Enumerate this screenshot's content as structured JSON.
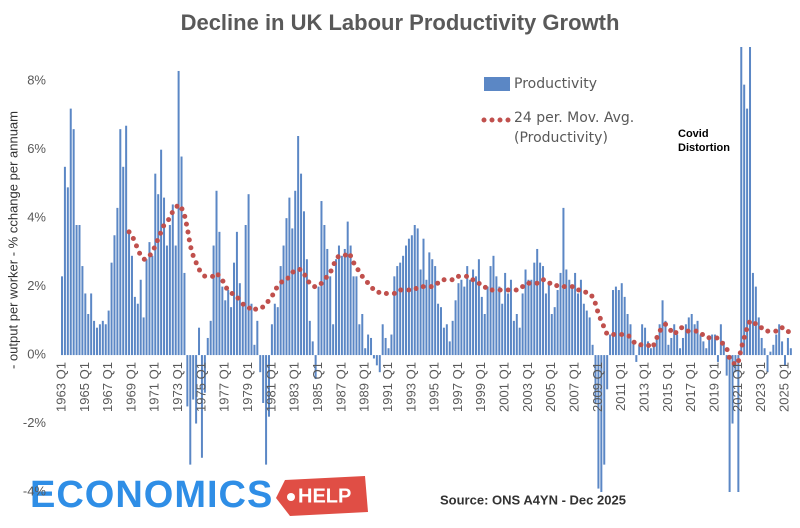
{
  "chart_data": {
    "type": "bar",
    "title": "Decline in UK Labour Productivity Growth",
    "y_label": "- output per worker - % cchange per annuam",
    "annotation": [
      "Covid",
      "Distortion"
    ],
    "source": "Source: ONS A4YN - Dec 2025",
    "ylim": [
      -4,
      9
    ],
    "yticks": [
      {
        "value": -4,
        "label": "-4%"
      },
      {
        "value": -2,
        "label": "-2%"
      },
      {
        "value": 0,
        "label": "0%"
      },
      {
        "value": 2,
        "label": "2%"
      },
      {
        "value": 4,
        "label": "4%"
      },
      {
        "value": 6,
        "label": "6%"
      },
      {
        "value": 8,
        "label": "8%"
      }
    ],
    "grid": false,
    "categories": [
      "1963 Q1",
      null,
      null,
      null,
      null,
      null,
      null,
      null,
      "1965 Q1",
      null,
      null,
      null,
      null,
      null,
      null,
      null,
      "1967 Q1",
      null,
      null,
      null,
      null,
      null,
      null,
      null,
      "1969 Q1",
      null,
      null,
      null,
      null,
      null,
      null,
      null,
      "1971 Q1",
      null,
      null,
      null,
      null,
      null,
      null,
      null,
      "1973 Q1",
      null,
      null,
      null,
      null,
      null,
      null,
      null,
      "1975 Q1",
      null,
      null,
      null,
      null,
      null,
      null,
      null,
      "1977 Q1",
      null,
      null,
      null,
      null,
      null,
      null,
      null,
      "1979 Q1",
      null,
      null,
      null,
      null,
      null,
      null,
      null,
      "1981 Q1",
      null,
      null,
      null,
      null,
      null,
      null,
      null,
      "1983 Q1",
      null,
      null,
      null,
      null,
      null,
      null,
      null,
      "1985 Q1",
      null,
      null,
      null,
      null,
      null,
      null,
      null,
      "1987 Q1",
      null,
      null,
      null,
      null,
      null,
      null,
      null,
      "1989 Q1",
      null,
      null,
      null,
      null,
      null,
      null,
      null,
      "1991 Q1",
      null,
      null,
      null,
      null,
      null,
      null,
      null,
      "1993 Q1",
      null,
      null,
      null,
      null,
      null,
      null,
      null,
      "1995 Q1",
      null,
      null,
      null,
      null,
      null,
      null,
      null,
      "1997 Q1",
      null,
      null,
      null,
      null,
      null,
      null,
      null,
      "1999 Q1",
      null,
      null,
      null,
      null,
      null,
      null,
      null,
      "2001 Q1",
      null,
      null,
      null,
      null,
      null,
      null,
      null,
      "2003 Q1",
      null,
      null,
      null,
      null,
      null,
      null,
      null,
      "2005 Q1",
      null,
      null,
      null,
      null,
      null,
      null,
      null,
      "2007 Q1",
      null,
      null,
      null,
      null,
      null,
      null,
      null,
      "2009 Q1",
      null,
      null,
      null,
      null,
      null,
      null,
      null,
      "2011 Q1",
      null,
      null,
      null,
      null,
      null,
      null,
      null,
      "2013 Q1",
      null,
      null,
      null,
      null,
      null,
      null,
      null,
      "2015 Q1",
      null,
      null,
      null,
      null,
      null,
      null,
      null,
      "2017 Q1",
      null,
      null,
      null,
      null,
      null,
      null,
      null,
      "2019 Q1",
      null,
      null,
      null,
      null,
      null,
      null,
      null,
      "2021 Q1",
      null,
      null,
      null,
      null,
      null,
      null,
      null,
      "2023 Q1",
      null,
      null,
      null,
      null,
      null,
      null,
      null,
      "2025 Q1",
      null,
      null
    ],
    "series": [
      {
        "name": "Productivity",
        "color": "#5b87c5",
        "values": [
          2.3,
          5.5,
          4.9,
          7.2,
          6.6,
          3.8,
          3.8,
          2.6,
          1.8,
          1.2,
          1.8,
          1.0,
          0.8,
          0.9,
          1.0,
          0.9,
          1.3,
          2.7,
          3.5,
          4.3,
          6.6,
          5.5,
          6.7,
          3.6,
          2.9,
          1.7,
          1.5,
          2.2,
          1.1,
          2.8,
          3.3,
          2.9,
          5.3,
          4.7,
          6.0,
          4.6,
          3.2,
          3.8,
          4.4,
          3.2,
          8.3,
          5.8,
          2.4,
          -1.5,
          -3.2,
          -1.3,
          -2.0,
          0.8,
          -3.0,
          -1.1,
          0.5,
          1.0,
          3.2,
          4.8,
          3.6,
          2.0,
          1.6,
          1.9,
          1.4,
          2.7,
          3.6,
          2.1,
          1.5,
          3.8,
          4.7,
          1.5,
          0.3,
          1.0,
          -0.5,
          -1.4,
          -3.2,
          -1.8,
          0.9,
          1.5,
          1.4,
          2.6,
          3.2,
          4.0,
          4.6,
          3.7,
          4.8,
          6.4,
          5.3,
          4.2,
          2.8,
          1.0,
          0.4,
          -0.7,
          2.0,
          4.5,
          3.8,
          3.1,
          2.3,
          0.9,
          2.8,
          3.2,
          2.9,
          3.1,
          3.9,
          3.2,
          2.3,
          2.3,
          0.9,
          1.2,
          0.2,
          0.6,
          0.5,
          -0.1,
          -0.3,
          -0.5,
          0.9,
          0.5,
          0.2,
          0.6,
          2.3,
          2.6,
          2.7,
          2.9,
          3.2,
          3.4,
          3.5,
          3.8,
          3.7,
          2.5,
          3.4,
          2.2,
          3.0,
          2.8,
          2.6,
          1.5,
          1.4,
          0.8,
          0.9,
          0.4,
          1.0,
          1.6,
          2.1,
          2.2,
          2.0,
          2.6,
          2.2,
          2.5,
          2.3,
          2.8,
          1.7,
          1.2,
          2.0,
          2.6,
          2.9,
          2.3,
          2.0,
          1.5,
          2.4,
          1.8,
          2.2,
          1.0,
          1.2,
          0.8,
          1.8,
          2.5,
          2.2,
          2.2,
          2.7,
          3.1,
          2.7,
          2.6,
          1.8,
          2.1,
          1.2,
          1.4,
          1.9,
          2.4,
          4.3,
          2.5,
          2.2,
          2.0,
          2.4,
          1.8,
          2.2,
          1.5,
          1.3,
          1.1,
          0.3,
          -1.4,
          -3.9,
          -4.0,
          -3.2,
          -1.0,
          0.6,
          1.9,
          2.0,
          1.9,
          2.1,
          1.7,
          1.2,
          0.9,
          0.4,
          -0.2,
          0.3,
          0.9,
          0.8,
          0.4,
          0.2,
          0.3,
          0.5,
          0.9,
          1.6,
          1.0,
          0.3,
          0.5,
          0.9,
          0.6,
          0.2,
          0.5,
          0.9,
          1.1,
          1.2,
          0.9,
          1.0,
          0.6,
          0.4,
          0.2,
          0.5,
          0.6,
          0.6,
          -0.2,
          0.9,
          0.4,
          -0.6,
          -4.2,
          -2.0,
          -0.5,
          -4.2,
          9.0,
          7.9,
          7.2,
          9.0,
          2.4,
          2.0,
          1.1,
          0.5,
          0.2,
          -0.5,
          0.1,
          0.3,
          0.6,
          0.9,
          0.4,
          -0.3,
          0.5,
          0.2
        ]
      },
      {
        "name": "24 per. Mov. Avg. (Productivity)",
        "color": "#c0504d",
        "type": "line",
        "style": "dotted",
        "values": [
          null,
          null,
          null,
          null,
          null,
          null,
          null,
          null,
          null,
          null,
          null,
          null,
          null,
          null,
          null,
          null,
          null,
          null,
          null,
          null,
          null,
          null,
          null,
          3.6,
          3.5,
          3.3,
          3.1,
          2.9,
          2.8,
          2.8,
          2.9,
          3.0,
          3.2,
          3.4,
          3.6,
          3.8,
          3.9,
          4.0,
          4.2,
          4.3,
          4.4,
          4.3,
          4.1,
          3.7,
          3.2,
          2.9,
          2.7,
          2.5,
          2.4,
          2.3,
          2.3,
          2.3,
          2.3,
          2.4,
          2.3,
          2.2,
          2.0,
          1.9,
          1.8,
          1.8,
          1.7,
          1.6,
          1.5,
          1.4,
          1.4,
          1.3,
          1.3,
          1.4,
          1.4,
          1.4,
          1.5,
          1.6,
          1.7,
          1.9,
          2.0,
          2.1,
          2.2,
          2.2,
          2.3,
          2.4,
          2.5,
          2.5,
          2.5,
          2.4,
          2.2,
          2.1,
          2.0,
          2.0,
          2.0,
          2.1,
          2.2,
          2.3,
          2.4,
          2.6,
          2.8,
          2.9,
          2.9,
          2.9,
          3.0,
          2.9,
          2.7,
          2.6,
          2.4,
          2.3,
          2.2,
          2.1,
          2.0,
          1.9,
          1.9,
          1.8,
          1.8,
          1.8,
          1.8,
          1.8,
          1.8,
          1.9,
          1.9,
          1.9,
          1.9,
          1.9,
          1.9,
          1.9,
          2.0,
          2.0,
          2.0,
          2.0,
          2.0,
          2.0,
          2.1,
          2.1,
          2.1,
          2.2,
          2.2,
          2.2,
          2.2,
          2.3,
          2.3,
          2.3,
          2.3,
          2.3,
          2.2,
          2.2,
          2.2,
          2.1,
          2.0,
          2.0,
          1.9,
          1.9,
          1.9,
          1.9,
          1.9,
          1.9,
          1.9,
          1.9,
          1.9,
          1.9,
          1.9,
          1.9,
          2.0,
          2.0,
          2.1,
          2.1,
          2.1,
          2.1,
          2.1,
          2.2,
          2.2,
          2.1,
          2.1,
          2.1,
          2.0,
          2.0,
          2.0,
          2.0,
          2.0,
          2.0,
          2.0,
          1.9,
          1.9,
          1.9,
          1.8,
          1.8,
          1.7,
          1.5,
          1.2,
          1.0,
          0.8,
          0.6,
          0.6,
          0.6,
          0.6,
          0.6,
          0.6,
          0.6,
          0.6,
          0.5,
          0.4,
          0.3,
          0.3,
          0.3,
          0.3,
          0.3,
          0.2,
          0.3,
          0.5,
          0.7,
          0.8,
          0.9,
          0.8,
          0.7,
          0.6,
          0.7,
          0.8,
          0.8,
          0.7,
          0.7,
          0.7,
          0.7,
          0.7,
          0.6,
          0.6,
          0.6,
          0.5,
          0.5,
          0.5,
          0.5,
          0.4,
          0.3,
          0.2,
          -0.1,
          -0.2,
          -0.3,
          -0.2,
          0.2,
          0.5,
          0.8,
          1.0,
          1.0,
          0.9,
          0.8,
          0.8,
          0.7,
          0.7,
          0.7,
          0.7,
          0.7,
          0.7,
          0.8,
          0.7,
          0.7,
          0.6
        ]
      }
    ]
  },
  "logo": [
    "ECONOMICS",
    "HELP"
  ]
}
